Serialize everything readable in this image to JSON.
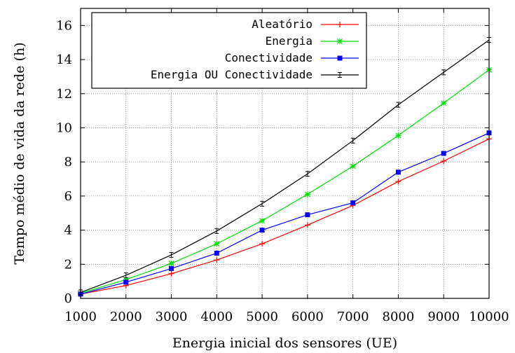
{
  "chart_data": {
    "type": "line",
    "xlabel": "Energia inicial dos sensores (UE)",
    "ylabel": "Tempo médio de vida da rede (h)",
    "xlim": [
      1000,
      10000
    ],
    "ylim": [
      0,
      17
    ],
    "x_ticks": [
      1000,
      2000,
      3000,
      4000,
      5000,
      6000,
      7000,
      8000,
      9000,
      10000
    ],
    "y_ticks": [
      0,
      2,
      4,
      6,
      8,
      10,
      12,
      14,
      16
    ],
    "grid": true,
    "legend_position": "top-left",
    "x": [
      1000,
      2000,
      3000,
      4000,
      5000,
      6000,
      7000,
      8000,
      9000,
      10000
    ],
    "series": [
      {
        "name": "Aleatório",
        "color": "#ff0000",
        "marker": "plus",
        "values": [
          0.25,
          0.75,
          1.45,
          2.25,
          3.2,
          4.3,
          5.45,
          6.85,
          8.05,
          9.35
        ]
      },
      {
        "name": "Energia",
        "color": "#00dd00",
        "marker": "star",
        "values": [
          0.3,
          1.1,
          2.05,
          3.2,
          4.55,
          6.1,
          7.75,
          9.55,
          11.45,
          13.4
        ]
      },
      {
        "name": "Conectividade",
        "color": "#0000ff",
        "marker": "square",
        "values": [
          0.25,
          0.95,
          1.75,
          2.65,
          4.0,
          4.9,
          5.6,
          7.4,
          8.5,
          9.7
        ]
      },
      {
        "name": "Energia OU Conectividade",
        "color": "#000000",
        "marker": "errorbar",
        "values": [
          0.35,
          1.35,
          2.55,
          3.95,
          5.55,
          7.3,
          9.25,
          11.35,
          13.25,
          15.15
        ]
      }
    ]
  }
}
